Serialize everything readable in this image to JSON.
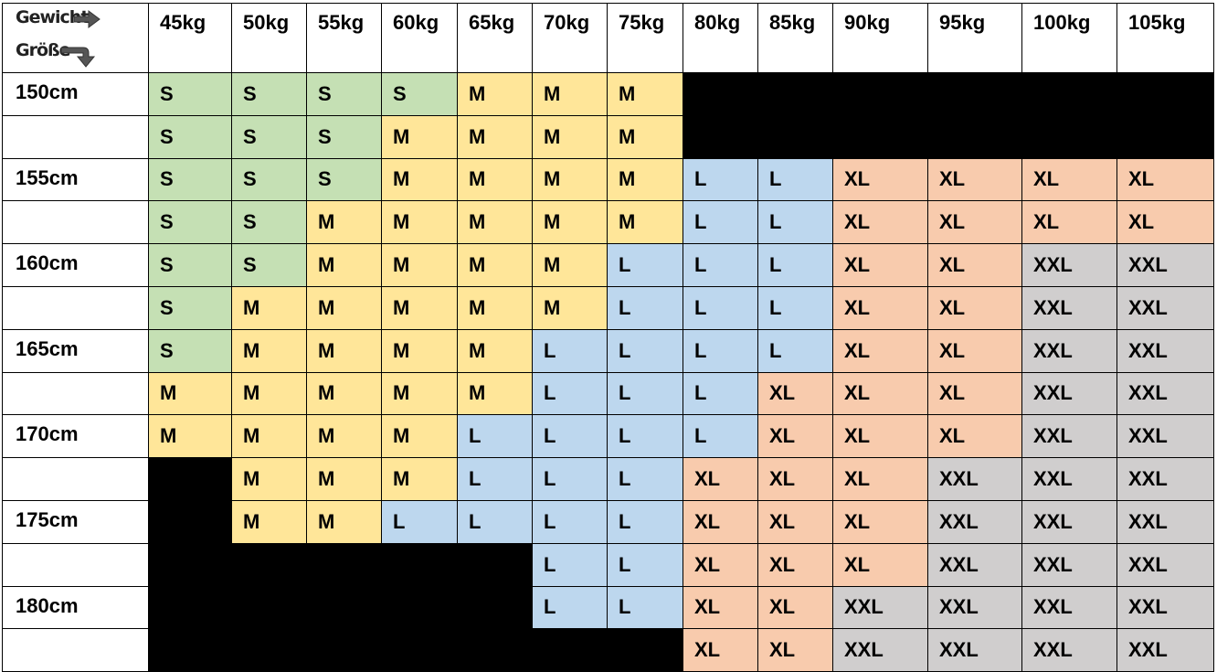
{
  "corner": {
    "weight_label": "Gewicht",
    "height_label": "Größe",
    "weight_arrow_icon": "arrow-right-icon",
    "height_arrow_icon": "arrow-turn-down-icon"
  },
  "colors": {
    "S": "#c5e0b4",
    "M": "#ffe699",
    "L": "#bdd7ee",
    "XL": "#f8cbad",
    "XXL": "#d0cece",
    "blocked": "#000000",
    "empty": "#ffffff"
  },
  "weights": [
    "45kg",
    "50kg",
    "55kg",
    "60kg",
    "65kg",
    "70kg",
    "75kg",
    "80kg",
    "85kg",
    "90kg",
    "95kg",
    "100kg",
    "105kg"
  ],
  "rows": [
    {
      "height": "150cm",
      "sizes": [
        "S",
        "S",
        "S",
        "S",
        "M",
        "M",
        "M",
        "#",
        "#",
        "#",
        "#",
        "#",
        "#"
      ]
    },
    {
      "height": "",
      "sizes": [
        "S",
        "S",
        "S",
        "M",
        "M",
        "M",
        "M",
        "#",
        "#",
        "#",
        "#",
        "#",
        "#"
      ]
    },
    {
      "height": "155cm",
      "sizes": [
        "S",
        "S",
        "S",
        "M",
        "M",
        "M",
        "M",
        "L",
        "L",
        "XL",
        "XL",
        "XL",
        "XL"
      ]
    },
    {
      "height": "",
      "sizes": [
        "S",
        "S",
        "M",
        "M",
        "M",
        "M",
        "M",
        "L",
        "L",
        "XL",
        "XL",
        "XL",
        "XL"
      ]
    },
    {
      "height": "160cm",
      "sizes": [
        "S",
        "S",
        "M",
        "M",
        "M",
        "M",
        "L",
        "L",
        "L",
        "XL",
        "XL",
        "XXL",
        "XXL"
      ]
    },
    {
      "height": "",
      "sizes": [
        "S",
        "M",
        "M",
        "M",
        "M",
        "M",
        "L",
        "L",
        "L",
        "XL",
        "XL",
        "XXL",
        "XXL"
      ]
    },
    {
      "height": "165cm",
      "sizes": [
        "S",
        "M",
        "M",
        "M",
        "M",
        "L",
        "L",
        "L",
        "L",
        "XL",
        "XL",
        "XXL",
        "XXL"
      ]
    },
    {
      "height": "",
      "sizes": [
        "M",
        "M",
        "M",
        "M",
        "M",
        "L",
        "L",
        "L",
        "XL",
        "XL",
        "XL",
        "XXL",
        "XXL"
      ]
    },
    {
      "height": "170cm",
      "sizes": [
        "M",
        "M",
        "M",
        "M",
        "L",
        "L",
        "L",
        "L",
        "XL",
        "XL",
        "XL",
        "XXL",
        "XXL"
      ]
    },
    {
      "height": "",
      "sizes": [
        "#",
        "M",
        "M",
        "M",
        "L",
        "L",
        "L",
        "XL",
        "XL",
        "XL",
        "XXL",
        "XXL",
        "XXL"
      ]
    },
    {
      "height": "175cm",
      "sizes": [
        "#",
        "M",
        "M",
        "L",
        "L",
        "L",
        "L",
        "XL",
        "XL",
        "XL",
        "XXL",
        "XXL",
        "XXL"
      ]
    },
    {
      "height": "",
      "sizes": [
        "#",
        "#",
        "#",
        "#",
        "#",
        "L",
        "L",
        "XL",
        "XL",
        "XL",
        "XXL",
        "XXL",
        "XXL"
      ]
    },
    {
      "height": "180cm",
      "sizes": [
        "#",
        "#",
        "#",
        "#",
        "#",
        "L",
        "L",
        "XL",
        "XL",
        "XXL",
        "XXL",
        "XXL",
        "XXL"
      ]
    },
    {
      "height": "",
      "sizes": [
        "#",
        "#",
        "#",
        "#",
        "#",
        "#",
        "#",
        "XL",
        "XL",
        "XXL",
        "XXL",
        "XXL",
        "XXL"
      ]
    }
  ]
}
